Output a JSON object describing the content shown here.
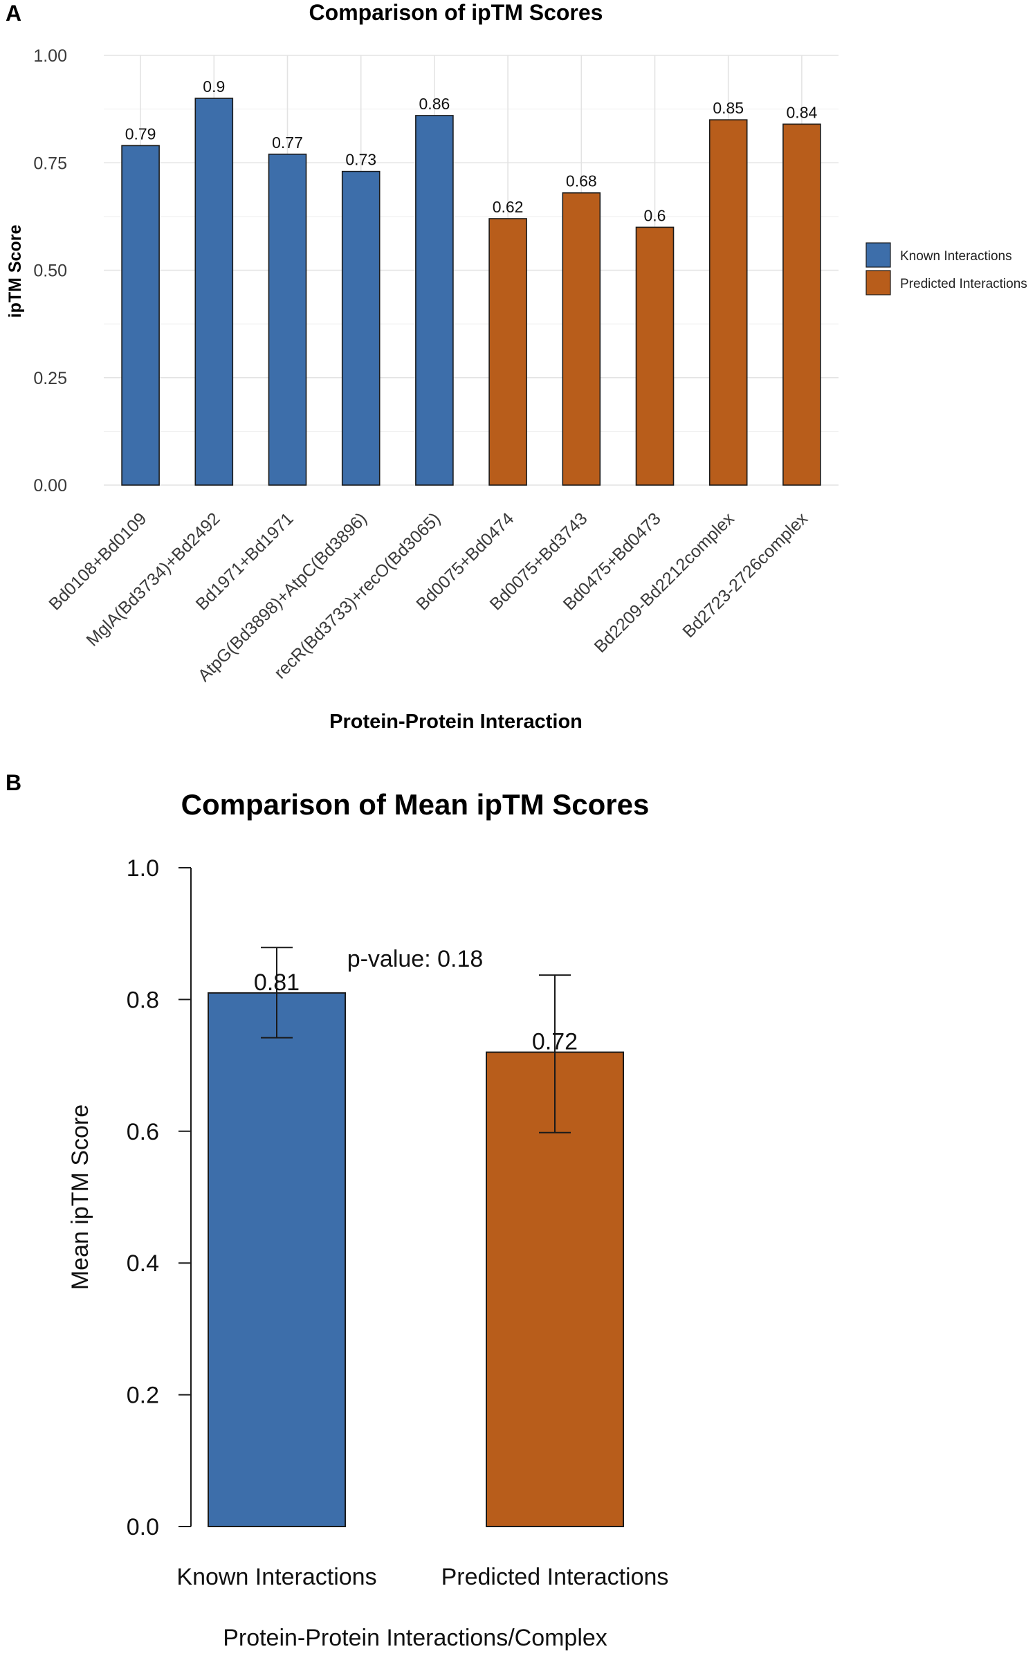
{
  "chart_data": [
    {
      "panel_label": "A",
      "type": "bar",
      "title": "Comparison of ipTM Scores",
      "xlabel": "Protein-Protein Interaction",
      "ylabel": "ipTM Score",
      "ylim": [
        0,
        1.0
      ],
      "yticks": [
        "0.00",
        "0.25",
        "0.50",
        "0.75",
        "1.00"
      ],
      "grid": true,
      "legend_position": "right",
      "legend": [
        {
          "name": "Known Interactions",
          "color": "#3d6eaa"
        },
        {
          "name": "Predicted Interactions",
          "color": "#b85d1b"
        }
      ],
      "categories": [
        "Bd0108+Bd0109",
        "MglA(Bd3734)+Bd2492",
        "Bd1971+Bd1971",
        "AtpG(Bd3898)+AtpC(Bd3896)",
        "recR(Bd3733)+recO(Bd3065)",
        "Bd0075+Bd0474",
        "Bd0075+Bd3743",
        "Bd0475+Bd0473",
        "Bd2209-Bd2212complex",
        "Bd2723-2726complex"
      ],
      "values": [
        0.79,
        0.9,
        0.77,
        0.73,
        0.86,
        0.62,
        0.68,
        0.6,
        0.85,
        0.84
      ],
      "value_labels": [
        "0.79",
        "0.9",
        "0.77",
        "0.73",
        "0.86",
        "0.62",
        "0.68",
        "0.6",
        "0.85",
        "0.84"
      ],
      "groups": [
        "Known Interactions",
        "Known Interactions",
        "Known Interactions",
        "Known Interactions",
        "Known Interactions",
        "Predicted Interactions",
        "Predicted Interactions",
        "Predicted Interactions",
        "Predicted Interactions",
        "Predicted Interactions"
      ]
    },
    {
      "panel_label": "B",
      "type": "bar",
      "title": "Comparison of Mean ipTM Scores",
      "xlabel": "Protein-Protein Interactions/Complex",
      "ylabel": "Mean ipTM Score",
      "ylim": [
        0,
        1.0
      ],
      "yticks": [
        "0.0",
        "0.2",
        "0.4",
        "0.6",
        "0.8",
        "1.0"
      ],
      "grid": false,
      "categories": [
        "Known Interactions",
        "Predicted Interactions"
      ],
      "values": [
        0.81,
        0.72
      ],
      "value_labels": [
        "0.81",
        "0.72"
      ],
      "error_low": [
        0.742,
        0.598
      ],
      "error_high": [
        0.879,
        0.837
      ],
      "colors": [
        "#3d6eaa",
        "#b85d1b"
      ],
      "annotation": "p-value: 0.18"
    }
  ]
}
